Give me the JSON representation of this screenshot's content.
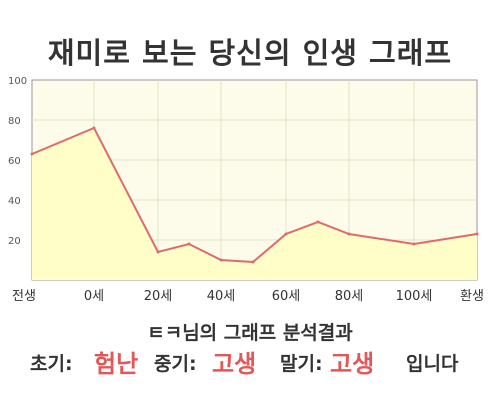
{
  "chart_data": {
    "type": "area",
    "title": "재미로 보는 당신의 인생 그래프",
    "x_ticks": [
      "전생",
      "0세",
      "20세",
      "40세",
      "60세",
      "80세",
      "100세",
      "환생"
    ],
    "points": [
      {
        "x": "전생",
        "y": 63
      },
      {
        "x": "0세",
        "y": 76
      },
      {
        "x": "20세",
        "y": 14
      },
      {
        "x": "30세",
        "y": 18
      },
      {
        "x": "40세",
        "y": 10
      },
      {
        "x": "50세",
        "y": 9
      },
      {
        "x": "60세",
        "y": 23
      },
      {
        "x": "70세",
        "y": 29
      },
      {
        "x": "80세",
        "y": 23
      },
      {
        "x": "100세",
        "y": 18
      },
      {
        "x": "환생",
        "y": 23
      }
    ],
    "y_ticks": [
      100,
      80,
      60,
      40,
      20
    ],
    "ylim": [
      0,
      100
    ],
    "grid": true,
    "colors": {
      "line": "#e06a6a",
      "fill": "#fffdc8",
      "plot_bg": "#fdfcea",
      "grid": "#e4e4c8"
    }
  },
  "summary": {
    "analysis": "ㅌㅋ님의 그래프 분석결과",
    "early_label": "초기:",
    "early_value": "험난",
    "middle_label": "중기:",
    "middle_value": "고생",
    "late_label": "말기:",
    "late_value": "고생",
    "ending": "입니다"
  }
}
